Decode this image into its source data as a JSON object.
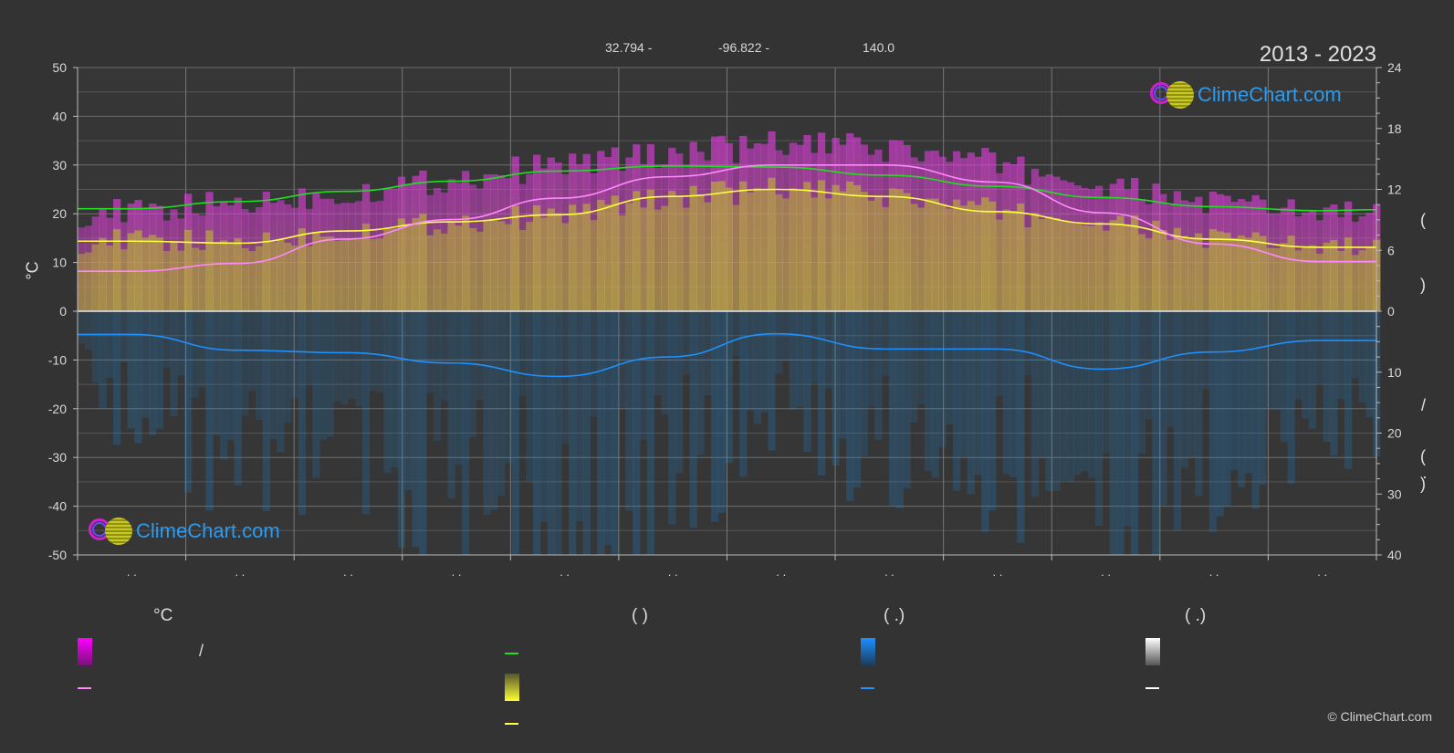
{
  "header": {
    "latitude": "32.794 -",
    "longitude": "-96.822 -",
    "elevation": "140.0",
    "period": "2013 - 2023"
  },
  "logo_text": "ClimeChart.com",
  "copyright": "© ClimeChart.com",
  "axis": {
    "left_unit": "°C",
    "left_ticks": [
      50,
      40,
      30,
      20,
      10,
      0,
      -10,
      -20,
      -30,
      -40,
      -50
    ],
    "right_ticks_top": [
      24,
      18,
      12,
      6,
      0
    ],
    "right_ticks_bottom": [
      10,
      20,
      30,
      40
    ],
    "month_tick_label": ". ."
  },
  "right_axis_marks": [
    "(",
    ")",
    "/",
    "(",
    "·",
    ")"
  ],
  "legend": {
    "col1_head": "°C",
    "col1_slash": "/",
    "col2_head": "(          )",
    "col3_head": "(    .)",
    "col4_head": "(    .)"
  },
  "colors": {
    "background": "#333333",
    "temp_range": "#e23be2",
    "sunshine_fill": "#bcbc2a",
    "daylight_line": "#22dd22",
    "mean_temp_line": "#ff88ff",
    "sunshine_line": "#ffff44",
    "precip": "#1b8ce0",
    "precip_line": "#1e90ff",
    "snow_line": "#ffffff"
  },
  "chart_data": {
    "type": "area",
    "months": 12,
    "x_days": [
      0,
      15,
      45,
      75,
      105,
      135,
      166,
      196,
      227,
      258,
      288,
      319,
      349,
      365
    ],
    "daylight_hours": [
      10.1,
      10.1,
      10.8,
      11.8,
      12.8,
      13.8,
      14.3,
      14.2,
      13.4,
      12.3,
      11.2,
      10.3,
      9.9,
      10.0
    ],
    "sunshine_hours": [
      6.9,
      6.9,
      6.7,
      7.9,
      8.8,
      9.5,
      11.3,
      12.0,
      11.3,
      9.8,
      8.6,
      7.1,
      6.3,
      6.3
    ],
    "mean_temp_c": [
      8.2,
      8.2,
      9.8,
      14.8,
      18.8,
      23.2,
      27.6,
      30.0,
      30.0,
      26.5,
      20.2,
      13.8,
      10.2,
      10.2
    ],
    "max_temp_band_c": [
      19,
      19,
      21,
      23,
      26,
      29,
      31,
      33,
      32,
      29,
      24,
      21,
      19,
      19
    ],
    "precip_mm": [
      3.8,
      3.8,
      6.4,
      6.8,
      8.5,
      10.7,
      7.5,
      3.7,
      6.2,
      6.2,
      9.5,
      6.7,
      4.8,
      4.8
    ],
    "left_ylim": [
      -50,
      50
    ],
    "right_top_ylim": [
      0,
      24
    ],
    "right_bottom_ylim": [
      0,
      40
    ],
    "grid": true
  }
}
